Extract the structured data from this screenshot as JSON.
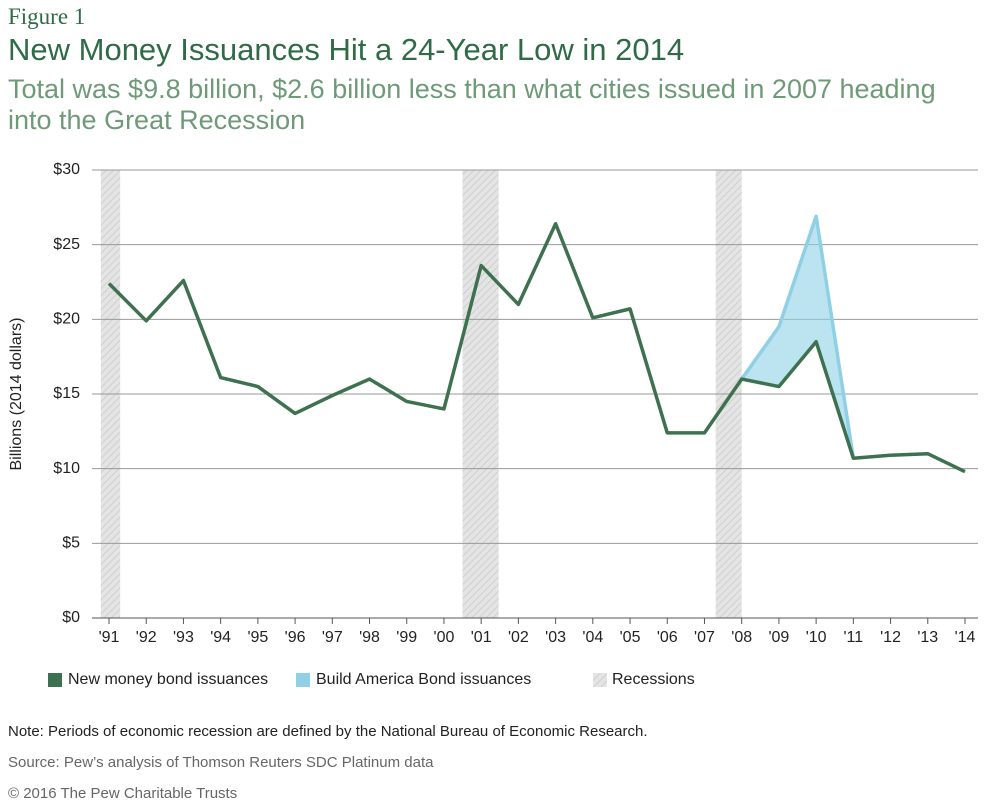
{
  "chart_data": {
    "type": "line",
    "figure_label": "Figure 1",
    "title": "New Money Issuances Hit a 24-Year Low in 2014",
    "subtitle": "Total was $9.8 billion, $2.6 billion less than what cities issued in 2007 heading into the Great Recession",
    "y_label": "Billions (2014 dollars)",
    "categories": [
      "'91",
      "'92",
      "'93",
      "'94",
      "'95",
      "'96",
      "'97",
      "'98",
      "'99",
      "'00",
      "'01",
      "'02",
      "'03",
      "'04",
      "'05",
      "'06",
      "'07",
      "'08",
      "'09",
      "'10",
      "'11",
      "'12",
      "'13",
      "'14"
    ],
    "series": [
      {
        "name": "New money bond issuances",
        "color": "#3e7150",
        "values": [
          22.4,
          19.9,
          22.6,
          16.1,
          15.5,
          13.7,
          14.9,
          16.0,
          14.5,
          14.0,
          23.6,
          21.0,
          26.4,
          20.1,
          20.7,
          12.4,
          12.4,
          16.0,
          15.5,
          18.5,
          10.7,
          10.9,
          11.0,
          9.8
        ]
      },
      {
        "name": "Build America Bond issuances",
        "color": "#8fd0e6",
        "stacked_on": 0,
        "values": [
          null,
          null,
          null,
          null,
          null,
          null,
          null,
          null,
          null,
          null,
          null,
          null,
          null,
          null,
          null,
          null,
          null,
          0,
          4.0,
          8.4,
          0,
          null,
          null,
          null
        ]
      }
    ],
    "recessions": {
      "name": "Recessions",
      "spans": [
        {
          "start": -0.22,
          "end": 0.3
        },
        {
          "start": 9.5,
          "end": 10.47
        },
        {
          "start": 16.3,
          "end": 17.0
        }
      ]
    },
    "ylim": [
      0,
      30
    ],
    "yticks": [
      {
        "value": 0,
        "label": "$0"
      },
      {
        "value": 5,
        "label": "$5"
      },
      {
        "value": 10,
        "label": "$10"
      },
      {
        "value": 15,
        "label": "$15"
      },
      {
        "value": 20,
        "label": "$20"
      },
      {
        "value": 25,
        "label": "$25"
      },
      {
        "value": 30,
        "label": "$30"
      }
    ],
    "grid": true,
    "note": "Note: Periods of economic recession are defined by the National Bureau of Economic Research.",
    "source": "Source: Pew’s analysis of Thomson Reuters SDC Platinum data",
    "copyright": "© 2016 The Pew Charitable Trusts"
  }
}
